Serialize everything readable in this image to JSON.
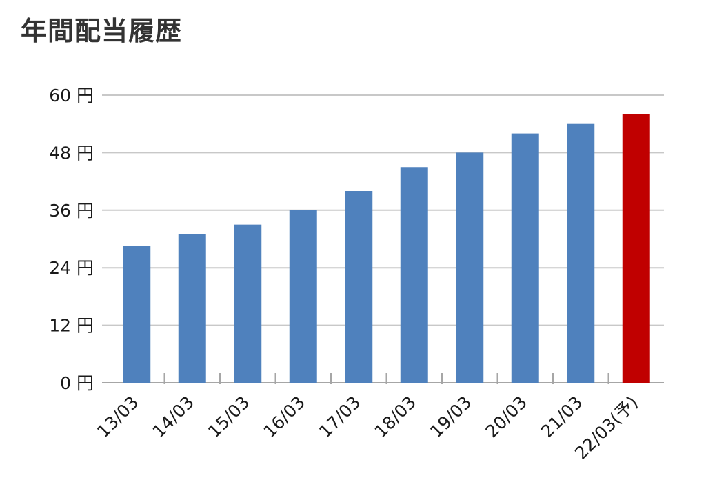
{
  "chart_data": {
    "type": "bar",
    "title": "年間配当履歴",
    "xlabel": "",
    "ylabel": "",
    "unit": "円",
    "categories": [
      "13/03",
      "14/03",
      "15/03",
      "16/03",
      "17/03",
      "18/03",
      "19/03",
      "20/03",
      "21/03",
      "22/03(予)"
    ],
    "values": [
      28.5,
      31,
      33,
      36,
      40,
      45,
      48,
      52,
      54,
      56
    ],
    "ylim": [
      0,
      60
    ],
    "yticks": [
      0,
      12,
      24,
      36,
      48,
      60
    ],
    "ytick_labels": [
      "0 円",
      "12 円",
      "24 円",
      "36 円",
      "48 円",
      "60 円"
    ],
    "grid": true,
    "colors": {
      "actual": "#4f81bd",
      "forecast": "#c00000",
      "grid": "#c8c8c8",
      "axis": "#a6a6a6"
    },
    "forecast_index": 9
  }
}
